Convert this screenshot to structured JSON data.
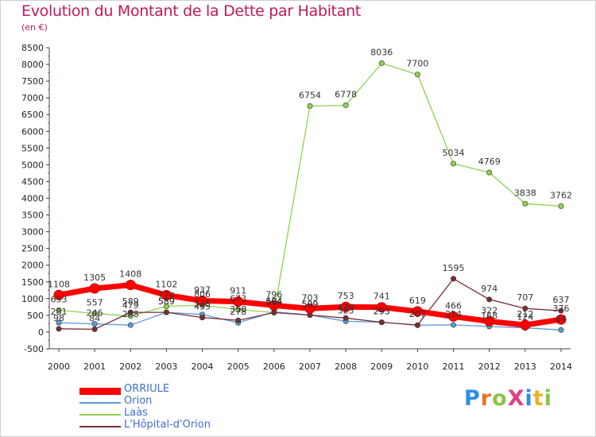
{
  "title": "Evolution du Montant de la Dette par Habitant",
  "subtitle": "(en €)",
  "logo": {
    "text": "ProXiti",
    "letter_colors": [
      "#2f8ee0",
      "#e8742a",
      "#8bc34a",
      "#e04080",
      "#2f8ee0",
      "#f0b020",
      "#8bc34a"
    ]
  },
  "chart_data": {
    "type": "line",
    "title": "Evolution du Montant de la Dette par Habitant",
    "subtitle": "(en €)",
    "x": [
      "2000",
      "2001",
      "2002",
      "2003",
      "2004",
      "2005",
      "2006",
      "2007",
      "2008",
      "2009",
      "2010",
      "2011",
      "2012",
      "2013",
      "2014"
    ],
    "ylim": [
      -500,
      8500
    ],
    "yticks": [
      -500,
      0,
      500,
      1000,
      1500,
      2000,
      2500,
      3000,
      3500,
      4000,
      4500,
      5000,
      5500,
      6000,
      6500,
      7000,
      7500,
      8000,
      8500
    ],
    "grid": false,
    "legend_position": "bottom-left",
    "series": [
      {
        "name": "ORRIULE",
        "color": "#ff0000",
        "values": [
          1108,
          1305,
          1408,
          1102,
          937,
          911,
          796,
          703,
          753,
          741,
          619,
          466,
          322,
          212,
          376
        ],
        "labels": [
          "1108",
          "1305",
          "1408",
          "1102",
          "937",
          "911",
          "796",
          "703",
          "753",
          "741",
          "619",
          "466",
          "322",
          "212",
          "376"
        ]
      },
      {
        "name": "Orion",
        "color": "#5b9bd5",
        "values": [
          281,
          246,
          208,
          589,
          525,
          278,
          604,
          509,
          325,
          293,
          207,
          214,
          168,
          124,
          64
        ],
        "labels": [
          "281",
          "246",
          "208",
          "589",
          "525",
          "278",
          "604",
          "509",
          "325",
          "293",
          "207",
          "214",
          "168",
          "124",
          "64"
        ]
      },
      {
        "name": "Laàs",
        "color": "#8fd14f",
        "values": [
          653,
          557,
          479,
          770,
          806,
          673,
          584,
          6754,
          6778,
          8036,
          7700,
          5034,
          4769,
          3838,
          3762
        ],
        "labels": [
          "653",
          "557",
          "479",
          "770",
          "806",
          "673",
          "584",
          "6754",
          "6778",
          "8036",
          "7700",
          "5034",
          "4769",
          "3838",
          "3762"
        ]
      },
      {
        "name": "L'Hôpital-d'Orion",
        "color": "#7b2d35",
        "values": [
          98,
          84,
          589,
          589,
          435,
          350,
          584,
          509,
          420,
          293,
          207,
          1595,
          974,
          707,
          637
        ],
        "labels": [
          "98",
          "84",
          "589",
          "589",
          "435",
          "350",
          "584",
          "509",
          "420",
          "293",
          "207",
          "1595",
          "974",
          "707",
          "637"
        ]
      }
    ]
  }
}
